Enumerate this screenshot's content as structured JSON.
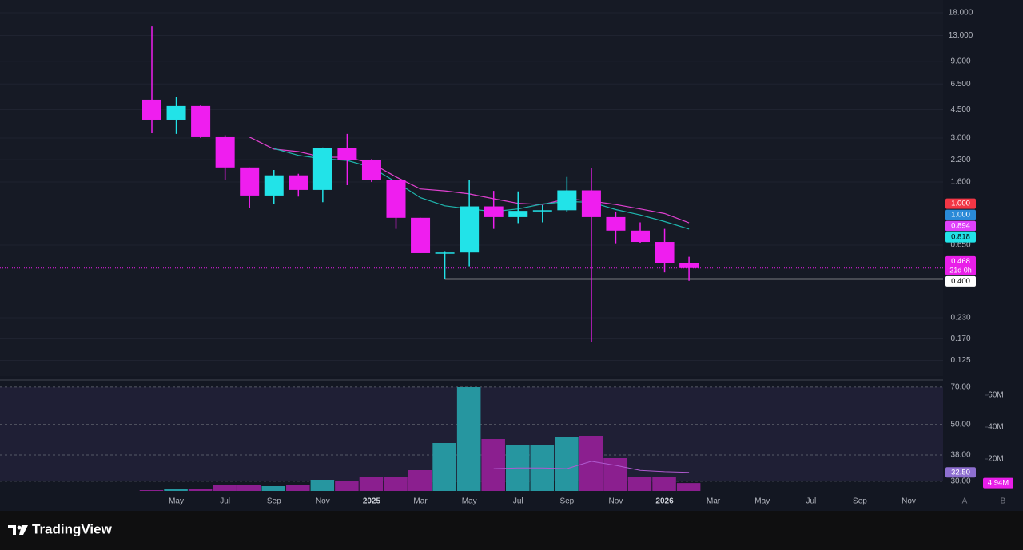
{
  "chart_data": {
    "type": "candlestick",
    "categories": [
      null,
      "May",
      null,
      "Jul",
      null,
      "Sep",
      null,
      "Nov",
      null,
      "2025",
      null,
      "Mar",
      null,
      "May",
      null,
      "Jul",
      null,
      "Sep",
      null,
      "Nov",
      null,
      "2026",
      null,
      "Mar",
      null,
      "May",
      null,
      "Jul",
      null,
      "Sep",
      null,
      "Nov"
    ],
    "open": [
      5.19,
      3.9,
      4.74,
      3.07,
      1.97,
      1.32,
      1.76,
      1.43,
      2.59,
      2.18,
      1.64,
      0.96,
      0.58,
      0.585,
      1.13,
      0.97,
      1.06,
      1.07,
      1.42,
      0.97,
      0.8,
      0.68,
      0.5,
      null,
      null,
      null,
      null,
      null,
      null,
      null,
      null,
      null
    ],
    "high": [
      14.8,
      5.37,
      4.8,
      3.12,
      1.97,
      1.9,
      1.8,
      2.62,
      3.18,
      2.22,
      1.64,
      0.96,
      0.59,
      1.64,
      1.41,
      1.4,
      1.15,
      1.72,
      1.95,
      1.05,
      0.9,
      0.82,
      0.55,
      null,
      null,
      null,
      null,
      null,
      null,
      null,
      null,
      null
    ],
    "low": [
      3.22,
      3.18,
      3.0,
      1.64,
      1.1,
      1.17,
      1.3,
      1.2,
      1.53,
      1.6,
      0.82,
      0.58,
      0.4,
      0.48,
      0.82,
      0.89,
      0.9,
      1.05,
      0.162,
      0.66,
      0.67,
      0.44,
      0.39,
      null,
      null,
      null,
      null,
      null,
      null,
      null,
      null,
      null
    ],
    "close": [
      3.9,
      4.74,
      3.07,
      1.97,
      1.32,
      1.76,
      1.43,
      2.59,
      2.18,
      1.64,
      0.96,
      0.58,
      0.585,
      1.13,
      0.97,
      1.06,
      1.07,
      1.42,
      0.97,
      0.8,
      0.68,
      0.5,
      0.468,
      null,
      null,
      null,
      null,
      null,
      null,
      null,
      null,
      null
    ],
    "up_color": "#22e3e8",
    "down_color": "#ef1eef",
    "log_scale": true,
    "grid": true,
    "ylim": [
      0.1,
      21.6
    ],
    "yticks": [
      {
        "value": 18,
        "label": "18.000"
      },
      {
        "value": 13,
        "label": "13.000"
      },
      {
        "value": 9,
        "label": "9.000"
      },
      {
        "value": 6.5,
        "label": "6.500"
      },
      {
        "value": 4.5,
        "label": "4.500"
      },
      {
        "value": 3,
        "label": "3.000"
      },
      {
        "value": 2.2,
        "label": "2.200"
      },
      {
        "value": 1.6,
        "label": "1.600"
      },
      {
        "value": 0.65,
        "label": "0.650"
      },
      {
        "value": 0.23,
        "label": "0.230"
      },
      {
        "value": 0.17,
        "label": "0.170"
      },
      {
        "value": 0.125,
        "label": "0.125"
      }
    ],
    "series": [
      {
        "color": "#e040d0",
        "values": [
          null,
          null,
          null,
          null,
          3.04,
          2.56,
          2.47,
          2.28,
          2.28,
          2.09,
          1.72,
          1.45,
          1.41,
          1.35,
          1.26,
          1.18,
          1.16,
          1.26,
          1.22,
          1.16,
          1.09,
          1.02,
          0.894,
          null,
          null,
          null,
          null,
          null,
          null,
          null,
          null,
          null
        ]
      },
      {
        "color": "#1fb5ad",
        "values": [
          null,
          null,
          null,
          null,
          null,
          2.58,
          2.34,
          2.23,
          2.18,
          1.97,
          1.6,
          1.28,
          1.14,
          1.09,
          1.05,
          1.09,
          1.17,
          1.21,
          1.2,
          1.08,
          1.0,
          0.91,
          0.818,
          null,
          null,
          null,
          null,
          null,
          null,
          null,
          null,
          null
        ]
      }
    ],
    "price_labels": [
      {
        "value": 1,
        "label": "1.000",
        "color": "#f23645",
        "text_color": "#ffffff"
      },
      {
        "value": 1,
        "label": "1.000",
        "color": "#2a8ad8",
        "text_color": "#ffffff"
      },
      {
        "value": 0.894,
        "label": "0.894",
        "color": "#e040fb",
        "text_color": "#ffffff"
      },
      {
        "value": 0.818,
        "label": "0.818",
        "color": "#22e3e8",
        "text_color": "#000000"
      },
      {
        "value": 0.468,
        "label": "0.468",
        "countdown": "21d 0h",
        "color": "#e91ee9",
        "text_color": "#ffffff",
        "line": "dotted"
      },
      {
        "value": 0.4,
        "label": "0.400",
        "color": "#ffffff",
        "text_color": "#000000"
      }
    ],
    "support_level": {
      "value": 0.4,
      "color": "#d9d9d9"
    },
    "volume": {
      "values": [
        500000,
        1000000,
        1500000,
        4000000,
        3500000,
        3000000,
        3500000,
        7000000,
        6500000,
        9000000,
        8500000,
        13000000,
        30000000,
        65000000,
        32500000,
        29000000,
        28500000,
        34000000,
        34500000,
        20500000,
        9000000,
        9000000,
        4940000,
        null,
        null,
        null,
        null,
        null,
        null,
        null,
        null,
        null
      ],
      "up_color": "#2696a0",
      "down_color": "#8b1f8f",
      "ylim": [
        0,
        67500000
      ],
      "yticks": [
        {
          "value": 20000000,
          "label": "20M"
        },
        {
          "value": 40000000,
          "label": "40M"
        },
        {
          "value": 60000000,
          "label": "60M"
        }
      ],
      "last_label": {
        "value": 4940000,
        "label": "4.94M",
        "color": "#e91ee9"
      }
    },
    "rsi": {
      "values": [
        null,
        null,
        null,
        null,
        null,
        null,
        null,
        null,
        null,
        null,
        null,
        null,
        null,
        null,
        33.6,
        33.8,
        33.8,
        33.6,
        35.9,
        34.6,
        33.1,
        32.7,
        32.5,
        null,
        null,
        null,
        null,
        null,
        null,
        null,
        null,
        null
      ],
      "color": "#b05ad0",
      "log_scale": true,
      "ylim": [
        27.5,
        72.5
      ],
      "yticks": [
        {
          "value": 70,
          "label": "70.00"
        },
        {
          "value": 50,
          "label": "50.00"
        },
        {
          "value": 38,
          "label": "38.00"
        },
        {
          "value": 30,
          "label": "30.00"
        }
      ],
      "band_color": "#7e57c2",
      "last_label": {
        "value": 32.5,
        "label": "32.50",
        "color": "#8e6fd0"
      }
    }
  },
  "scale_buttons": [
    "A",
    "B"
  ],
  "branding": {
    "name": "TradingView"
  }
}
